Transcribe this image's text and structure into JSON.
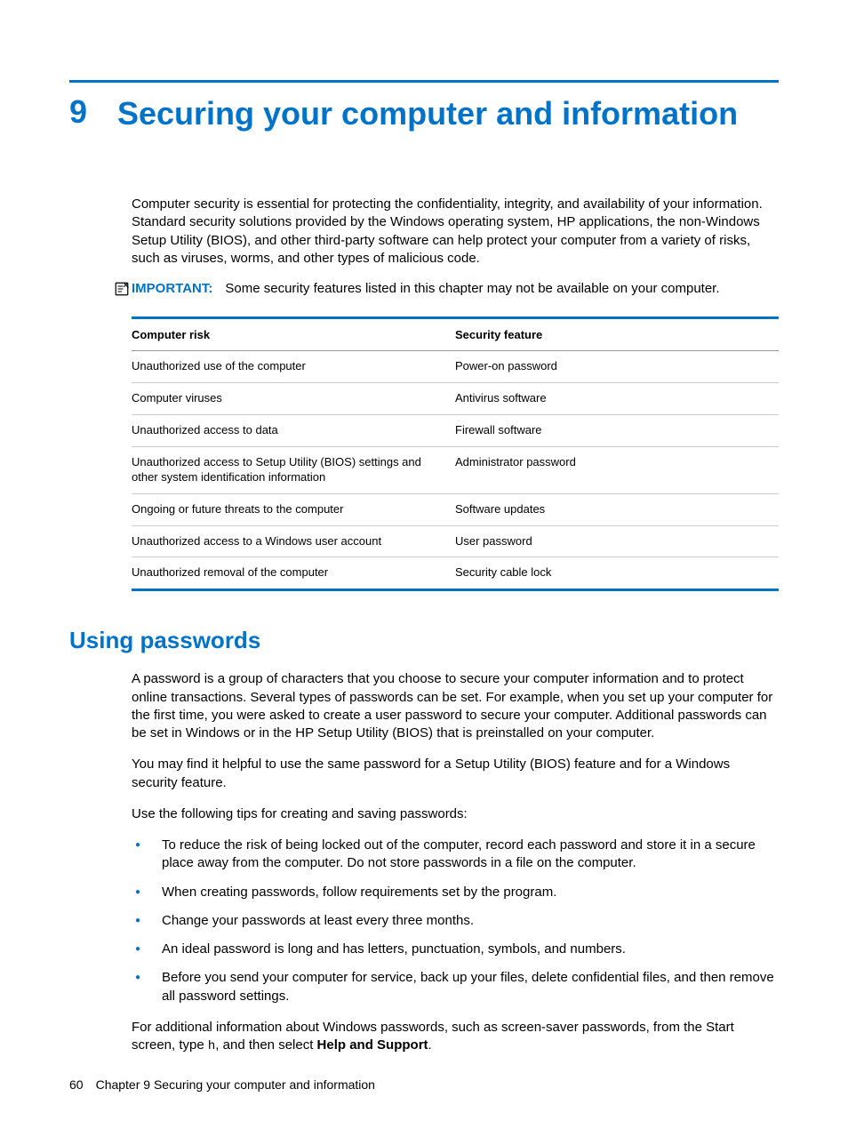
{
  "chapter": {
    "number": "9",
    "title": "Securing your computer and information"
  },
  "intro": "Computer security is essential for protecting the confidentiality, integrity, and availability of your information. Standard security solutions provided by the Windows operating system, HP applications, the non-Windows Setup Utility (BIOS), and other third-party software can help protect your computer from a variety of risks, such as viruses, worms, and other types of malicious code.",
  "important": {
    "label": "IMPORTANT:",
    "text": "Some security features listed in this chapter may not be available on your computer."
  },
  "table": {
    "headers": {
      "risk": "Computer risk",
      "feature": "Security feature"
    },
    "rows": [
      {
        "risk": "Unauthorized use of the computer",
        "feature": "Power-on password"
      },
      {
        "risk": "Computer viruses",
        "feature": "Antivirus software"
      },
      {
        "risk": "Unauthorized access to data",
        "feature": "Firewall software"
      },
      {
        "risk": "Unauthorized access to Setup Utility (BIOS) settings and other system identification information",
        "feature": "Administrator password"
      },
      {
        "risk": "Ongoing or future threats to the computer",
        "feature": "Software updates"
      },
      {
        "risk": "Unauthorized access to a Windows user account",
        "feature": "User password"
      },
      {
        "risk": "Unauthorized removal of the computer",
        "feature": "Security cable lock"
      }
    ]
  },
  "section": {
    "heading": "Using passwords",
    "p1": "A password is a group of characters that you choose to secure your computer information and to protect online transactions. Several types of passwords can be set. For example, when you set up your computer for the first time, you were asked to create a user password to secure your computer. Additional passwords can be set in Windows or in the HP Setup Utility (BIOS) that is preinstalled on your computer.",
    "p2": "You may find it helpful to use the same password for a Setup Utility (BIOS) feature and for a Windows security feature.",
    "p3": "Use the following tips for creating and saving passwords:",
    "tips": [
      "To reduce the risk of being locked out of the computer, record each password and store it in a secure place away from the computer. Do not store passwords in a file on the computer.",
      "When creating passwords, follow requirements set by the program.",
      "Change your passwords at least every three months.",
      "An ideal password is long and has letters, punctuation, symbols, and numbers.",
      "Before you send your computer for service, back up your files, delete confidential files, and then remove all password settings."
    ],
    "p4_pre": "For additional information about Windows passwords, such as screen-saver passwords, from the Start screen, type ",
    "p4_code": "h",
    "p4_mid": ", and then select ",
    "p4_bold": "Help and Support",
    "p4_post": "."
  },
  "footer": {
    "page": "60",
    "text": "Chapter 9   Securing your computer and information"
  },
  "colors": {
    "accent": "#0073c8"
  }
}
